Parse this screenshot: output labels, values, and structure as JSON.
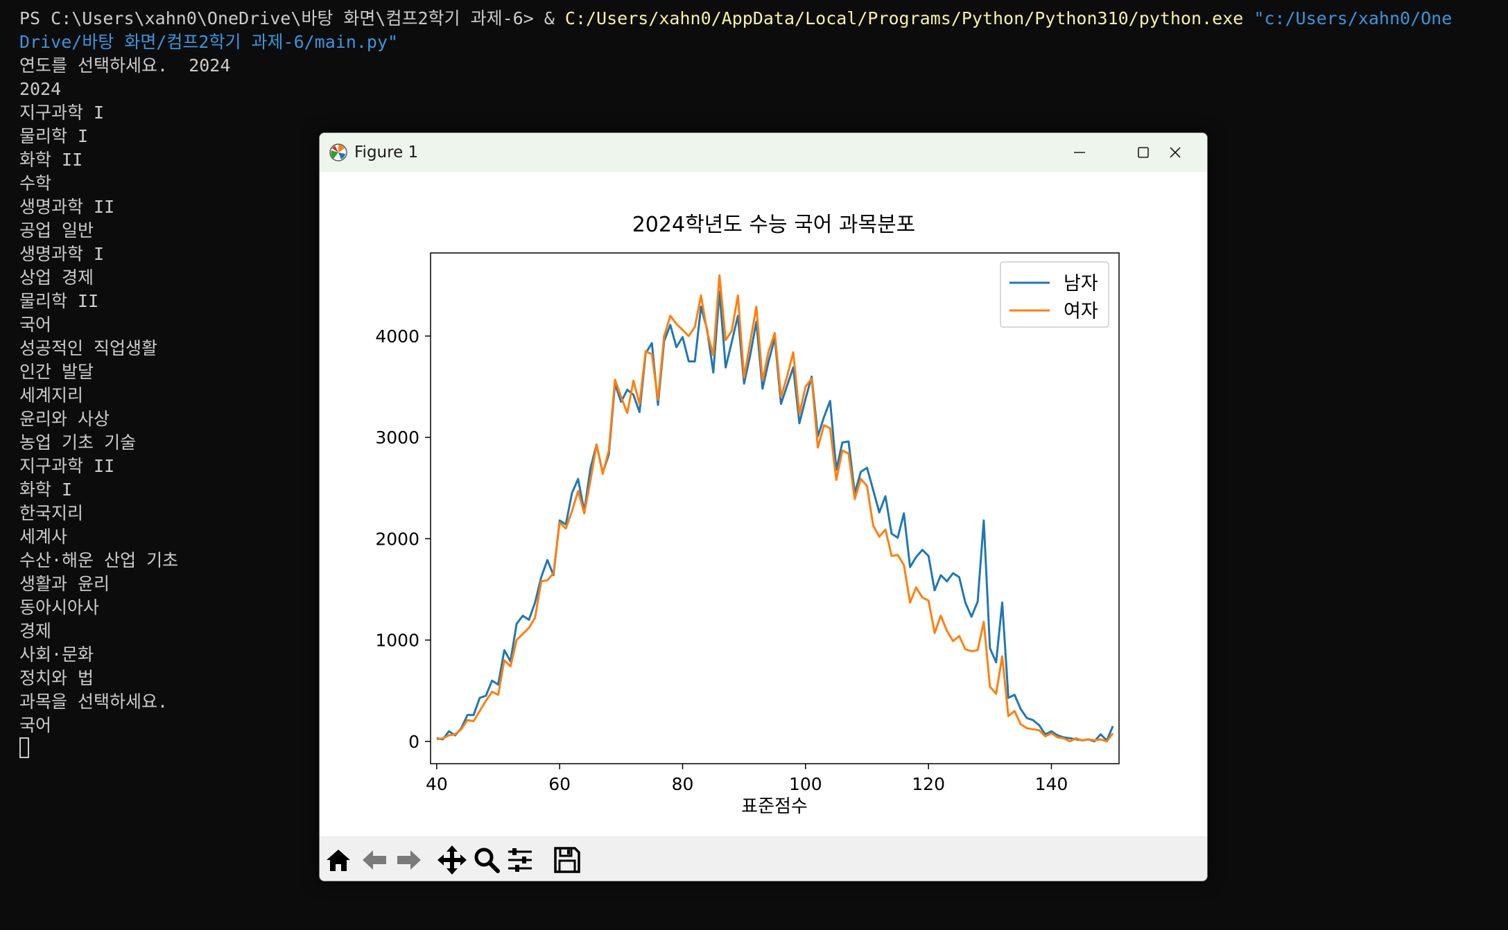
{
  "terminal": {
    "prompt": "PS C:\\Users\\xahn0\\OneDrive\\바탕 화면\\컴프2학기 과제-6> ",
    "amp": "& ",
    "exe_path": "C:/Users/xahn0/AppData/Local/Programs/Python/Python310/python.exe",
    "script_arg_1": "\"c:/Users/xahn0/One",
    "script_arg_2": "Drive/바탕 화면/컴프2학기 과제-6/main.py\"",
    "lines": [
      "연도를 선택하세요.  2024",
      "2024",
      "지구과학 I",
      "물리학 I",
      "화학 II",
      "수학",
      "생명과학 II",
      "공업 일반",
      "생명과학 I",
      "상업 경제",
      "물리학 II",
      "국어",
      "성공적인 직업생활",
      "인간 발달",
      "세계지리",
      "윤리와 사상",
      "농업 기초 기술",
      "지구과학 II",
      "화학 I",
      "한국지리",
      "세계사",
      "수산·해운 산업 기초",
      "생활과 윤리",
      "동아시아사",
      "경제",
      "사회·문화",
      "정치와 법",
      "과목을 선택하세요.",
      "국어"
    ]
  },
  "window": {
    "title": "Figure 1",
    "controls": {
      "minimize": "minimize-icon",
      "maximize": "maximize-icon",
      "close": "close-icon"
    }
  },
  "toolbar": {
    "buttons": [
      "home-icon",
      "back-arrow-icon",
      "forward-arrow-icon",
      "pan-icon",
      "zoom-icon",
      "configure-subplots-icon",
      "save-icon"
    ]
  },
  "colors": {
    "terminal_bg": "#0c0c0c",
    "male": "#1f77b4",
    "female": "#ff7f0e"
  },
  "chart_data": {
    "type": "line",
    "title": "2024학년도 수능 국어 과목분포",
    "xlabel": "표준점수",
    "ylabel": "",
    "xlim": [
      39,
      151
    ],
    "ylim": [
      -220,
      4820
    ],
    "xticks": [
      40,
      60,
      80,
      100,
      120,
      140
    ],
    "yticks": [
      0,
      1000,
      2000,
      3000,
      4000
    ],
    "legend_position": "top-right",
    "grid": false,
    "x_start": 40,
    "x_step": 1,
    "series": [
      {
        "name": "남자",
        "color": "#1f77b4",
        "values": [
          30,
          20,
          100,
          60,
          130,
          260,
          260,
          430,
          450,
          600,
          560,
          900,
          790,
          1160,
          1240,
          1200,
          1370,
          1620,
          1790,
          1640,
          2180,
          2140,
          2450,
          2590,
          2270,
          2690,
          2930,
          2650,
          2830,
          3530,
          3350,
          3470,
          3420,
          3250,
          3830,
          3930,
          3320,
          3950,
          4110,
          3890,
          3990,
          3750,
          3750,
          4290,
          4060,
          3640,
          4440,
          3690,
          3940,
          4200,
          3530,
          3810,
          4140,
          3480,
          3750,
          3980,
          3330,
          3510,
          3690,
          3140,
          3380,
          3600,
          3010,
          3200,
          3360,
          2680,
          2950,
          2960,
          2450,
          2660,
          2700,
          2480,
          2260,
          2420,
          2050,
          2010,
          2250,
          1720,
          1820,
          1890,
          1830,
          1490,
          1640,
          1580,
          1660,
          1620,
          1370,
          1230,
          1380,
          2180,
          920,
          780,
          1370,
          430,
          460,
          320,
          230,
          210,
          160,
          70,
          100,
          60,
          40,
          30,
          20,
          10,
          20,
          0,
          70,
          10,
          150
        ]
      },
      {
        "name": "여자",
        "color": "#ff7f0e",
        "values": [
          20,
          30,
          60,
          70,
          120,
          210,
          200,
          300,
          400,
          490,
          460,
          800,
          740,
          1000,
          1060,
          1120,
          1220,
          1580,
          1590,
          1660,
          2160,
          2100,
          2270,
          2470,
          2250,
          2570,
          2930,
          2640,
          2870,
          3570,
          3400,
          3240,
          3560,
          3330,
          3850,
          3820,
          3370,
          4000,
          4200,
          4120,
          4060,
          4000,
          4090,
          4400,
          4040,
          3810,
          4600,
          3960,
          4050,
          4400,
          3590,
          3940,
          4290,
          3560,
          3850,
          4030,
          3400,
          3600,
          3840,
          3230,
          3500,
          3580,
          2900,
          3120,
          3090,
          2580,
          2870,
          2840,
          2390,
          2590,
          2520,
          2130,
          2020,
          2090,
          1830,
          1840,
          1740,
          1370,
          1520,
          1420,
          1390,
          1070,
          1240,
          1090,
          990,
          1040,
          910,
          890,
          900,
          1180,
          540,
          470,
          840,
          250,
          300,
          170,
          130,
          120,
          110,
          50,
          80,
          40,
          30,
          0,
          30,
          10,
          20,
          10,
          20,
          0,
          80
        ]
      }
    ]
  }
}
